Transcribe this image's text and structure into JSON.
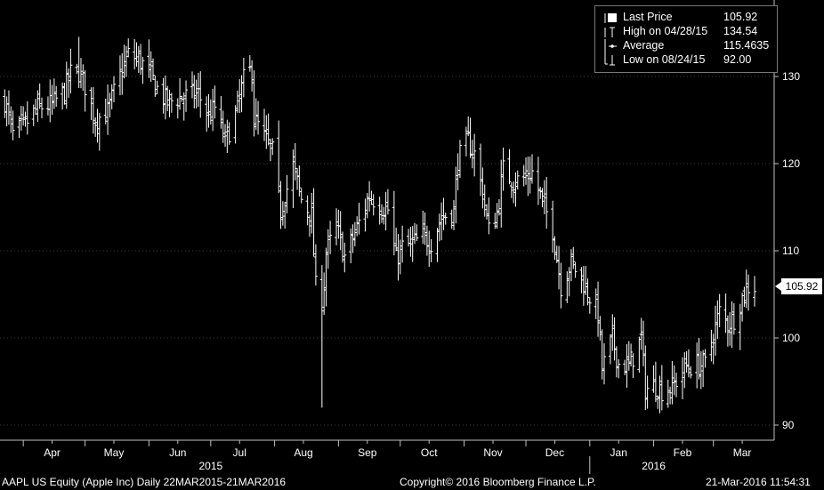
{
  "legend": {
    "last": {
      "label": "Last Price",
      "value": "105.92"
    },
    "high": {
      "label": "High on 04/28/15",
      "value": "134.54"
    },
    "avg": {
      "label": "Average",
      "value": "115.4635"
    },
    "low": {
      "label": "Low on 08/24/15",
      "value": "92.00"
    }
  },
  "last_price_tag": "105.92",
  "footer": {
    "left": "AAPL US Equity (Apple Inc)  Daily 22MAR2015-21MAR2016",
    "center": "Copyright© 2016 Bloomberg Finance L.P.",
    "right": "21-Mar-2016 11:54:31"
  },
  "colors": {
    "background": "#000000",
    "bars": "#ffffff",
    "grid": "#3a3a3a",
    "axis": "#bfbfbf"
  },
  "chart_data": {
    "type": "bar",
    "style": "OHLC price bars (daily)",
    "x_range": [
      "2015-03-22",
      "2016-03-21"
    ],
    "ylim": [
      88,
      138
    ],
    "yticks": [
      90,
      100,
      110,
      120,
      130
    ],
    "y_axis_side": "right",
    "grid": true,
    "legend_position": "top-right",
    "month_ticks": [
      {
        "label": "Mar",
        "date": "2015-03-16"
      },
      {
        "label": "Apr",
        "date": "2015-04-15"
      },
      {
        "label": "May",
        "date": "2015-05-15"
      },
      {
        "label": "Jun",
        "date": "2015-06-15"
      },
      {
        "label": "Jul",
        "date": "2015-07-15"
      },
      {
        "label": "Aug",
        "date": "2015-08-15"
      },
      {
        "label": "Sep",
        "date": "2015-09-15"
      },
      {
        "label": "Oct",
        "date": "2015-10-15"
      },
      {
        "label": "Nov",
        "date": "2015-11-15"
      },
      {
        "label": "Dec",
        "date": "2015-12-15"
      },
      {
        "label": "Jan",
        "date": "2016-01-15"
      },
      {
        "label": "Feb",
        "date": "2016-02-15"
      },
      {
        "label": "Mar",
        "date": "2016-03-15"
      }
    ],
    "year_ticks": [
      {
        "label": "2015",
        "date": "2015-07-01"
      },
      {
        "label": "2016",
        "date": "2016-02-01"
      }
    ],
    "year_separator": "2016-01-01",
    "series": [
      {
        "name": "Last Price",
        "close_points": [
          [
            "2015-03-23",
            127.2
          ],
          [
            "2015-03-27",
            123.3
          ],
          [
            "2015-04-01",
            124.2
          ],
          [
            "2015-04-08",
            126.4
          ],
          [
            "2015-04-15",
            126.8
          ],
          [
            "2015-04-21",
            128.3
          ],
          [
            "2015-04-24",
            130.3
          ],
          [
            "2015-04-28",
            130.5
          ],
          [
            "2015-05-01",
            128.9
          ],
          [
            "2015-05-06",
            125.0
          ],
          [
            "2015-05-12",
            126.0
          ],
          [
            "2015-05-18",
            130.2
          ],
          [
            "2015-05-22",
            132.5
          ],
          [
            "2015-05-27",
            132.0
          ],
          [
            "2015-06-01",
            130.5
          ],
          [
            "2015-06-05",
            128.6
          ],
          [
            "2015-06-10",
            127.0
          ],
          [
            "2015-06-15",
            127.5
          ],
          [
            "2015-06-20",
            127.8
          ],
          [
            "2015-06-25",
            128.0
          ],
          [
            "2015-06-30",
            125.4
          ],
          [
            "2015-07-03",
            126.4
          ],
          [
            "2015-07-08",
            122.6
          ],
          [
            "2015-07-13",
            125.6
          ],
          [
            "2015-07-17",
            129.6
          ],
          [
            "2015-07-21",
            130.8
          ],
          [
            "2015-07-22",
            125.2
          ],
          [
            "2015-07-27",
            123.0
          ],
          [
            "2015-07-31",
            121.3
          ],
          [
            "2015-08-04",
            114.6
          ],
          [
            "2015-08-10",
            119.7
          ],
          [
            "2015-08-14",
            115.9
          ],
          [
            "2015-08-19",
            114.0
          ],
          [
            "2015-08-21",
            105.8
          ],
          [
            "2015-08-24",
            103.1
          ],
          [
            "2015-08-26",
            109.7
          ],
          [
            "2015-08-31",
            112.8
          ],
          [
            "2015-09-04",
            109.3
          ],
          [
            "2015-09-10",
            112.6
          ],
          [
            "2015-09-16",
            116.4
          ],
          [
            "2015-09-21",
            115.2
          ],
          [
            "2015-09-25",
            114.7
          ],
          [
            "2015-09-29",
            109.1
          ],
          [
            "2015-10-02",
            110.4
          ],
          [
            "2015-10-07",
            110.8
          ],
          [
            "2015-10-12",
            111.6
          ],
          [
            "2015-10-16",
            111.0
          ],
          [
            "2015-10-21",
            113.8
          ],
          [
            "2015-10-27",
            114.6
          ],
          [
            "2015-10-29",
            120.5
          ],
          [
            "2015-11-03",
            122.6
          ],
          [
            "2015-11-06",
            121.1
          ],
          [
            "2015-11-10",
            116.8
          ],
          [
            "2015-11-13",
            112.3
          ],
          [
            "2015-11-17",
            114.3
          ],
          [
            "2015-11-20",
            119.3
          ],
          [
            "2015-11-25",
            118.0
          ],
          [
            "2015-11-30",
            118.3
          ],
          [
            "2015-12-04",
            119.0
          ],
          [
            "2015-12-09",
            115.6
          ],
          [
            "2015-12-14",
            112.5
          ],
          [
            "2015-12-18",
            106.0
          ],
          [
            "2015-12-23",
            108.6
          ],
          [
            "2015-12-28",
            106.8
          ],
          [
            "2015-12-31",
            105.3
          ],
          [
            "2016-01-05",
            102.7
          ],
          [
            "2016-01-07",
            96.4
          ],
          [
            "2016-01-12",
            99.9
          ],
          [
            "2016-01-15",
            97.0
          ],
          [
            "2016-01-20",
            96.8
          ],
          [
            "2016-01-26",
            99.9
          ],
          [
            "2016-01-28",
            94.1
          ],
          [
            "2016-02-02",
            94.5
          ],
          [
            "2016-02-05",
            94.0
          ],
          [
            "2016-02-10",
            94.3
          ],
          [
            "2016-02-16",
            96.6
          ],
          [
            "2016-02-22",
            96.9
          ],
          [
            "2016-02-26",
            96.9
          ],
          [
            "2016-03-01",
            100.5
          ],
          [
            "2016-03-04",
            103.0
          ],
          [
            "2016-03-08",
            101.6
          ],
          [
            "2016-03-11",
            102.3
          ],
          [
            "2016-03-15",
            104.6
          ],
          [
            "2016-03-18",
            105.9
          ],
          [
            "2016-03-21",
            105.92
          ]
        ]
      }
    ],
    "markers": {
      "high": {
        "date": "2015-04-28",
        "value": 134.54
      },
      "low": {
        "date": "2015-08-24",
        "value": 92.0
      },
      "average": 115.4635,
      "last": 105.92
    }
  }
}
